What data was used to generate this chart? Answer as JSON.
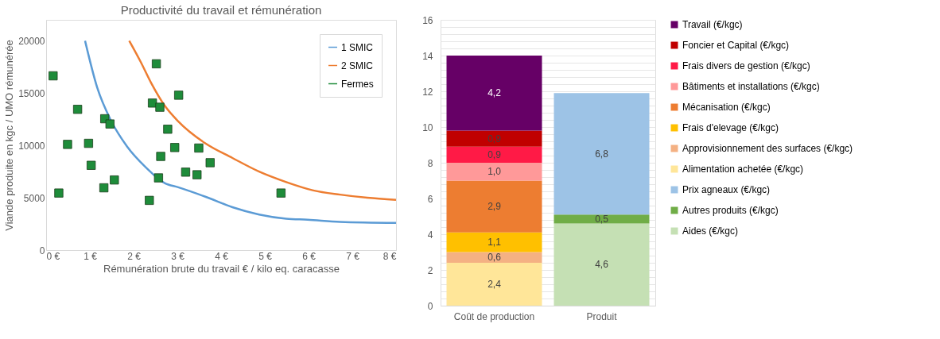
{
  "chart_data": [
    {
      "type": "line",
      "title": "Productivité du travail et rémunération",
      "xlabel": "Rémunération brute du travail € / kilo eq. caracasse",
      "ylabel": "Viande produite en kgc / UMO rémunérée",
      "xlim": [
        0,
        8
      ],
      "xticks": [
        {
          "value": 0,
          "label": "0 €"
        },
        {
          "value": 1,
          "label": "1 €"
        },
        {
          "value": 2,
          "label": "2 €"
        },
        {
          "value": 3,
          "label": "3 €"
        },
        {
          "value": 4,
          "label": "4 €"
        },
        {
          "value": 5,
          "label": "5 €"
        },
        {
          "value": 6,
          "label": "6 €"
        },
        {
          "value": 7,
          "label": "7 €"
        },
        {
          "value": 8,
          "label": "8 €"
        }
      ],
      "ylim": [
        0,
        22000
      ],
      "yticks": [
        0,
        5000,
        10000,
        15000,
        20000
      ],
      "grid": false,
      "legend": "top right",
      "series": [
        {
          "name": "1 SMIC",
          "type": "line",
          "color": "#5b9bd5",
          "x": [
            0.89,
            1.17,
            1.48,
            1.85,
            2.28,
            2.71,
            3.02,
            3.64,
            4.26,
            4.87,
            5.49,
            5.98,
            6.72,
            8
          ],
          "values": [
            20000,
            15500,
            12400,
            9900,
            7900,
            6400,
            6000,
            5100,
            4100,
            3400,
            3000,
            2900,
            2700,
            2600
          ]
        },
        {
          "name": "2 SMIC",
          "type": "line",
          "color": "#ed7d31",
          "x": [
            1.9,
            2.16,
            2.41,
            2.71,
            3.02,
            3.64,
            4.26,
            4.87,
            5.49,
            6.11,
            6.72,
            7.34,
            8
          ],
          "values": [
            20000,
            18000,
            15900,
            13800,
            12300,
            10200,
            8800,
            7500,
            6500,
            5700,
            5300,
            5000,
            4800
          ]
        },
        {
          "name": "Fermes",
          "type": "scatter",
          "marker": "square",
          "color": "#1e8c3a",
          "x": [
            0.16,
            0.29,
            0.49,
            0.72,
            0.97,
            1.03,
            1.32,
            1.34,
            1.46,
            1.56,
            2.36,
            2.43,
            2.52,
            2.6,
            2.57,
            2.62,
            2.78,
            2.94,
            3.03,
            3.19,
            3.45,
            3.49,
            3.75,
            5.37
          ],
          "values": [
            16650,
            5450,
            10100,
            13450,
            10200,
            8100,
            5950,
            12550,
            12050,
            6700,
            4750,
            14050,
            17800,
            13650,
            6900,
            8950,
            11550,
            9800,
            14800,
            7450,
            7200,
            9750,
            8350,
            5450
          ]
        }
      ]
    },
    {
      "type": "bar",
      "stacked": true,
      "categories": [
        "Coût de production",
        "Produit"
      ],
      "ylim": [
        0,
        16
      ],
      "grid": "y",
      "legend": "right",
      "yticks": [
        0,
        {
          "value": 0.4,
          "label": null
        },
        {
          "value": 0.8,
          "label": null
        },
        {
          "value": 1.2,
          "label": null
        },
        {
          "value": 1.6,
          "label": null
        },
        2,
        {
          "value": 2.4,
          "label": null
        },
        {
          "value": 2.8,
          "label": null
        },
        {
          "value": 3.2,
          "label": null
        },
        {
          "value": 3.6,
          "label": null
        },
        4,
        {
          "value": 4.4,
          "label": null
        },
        {
          "value": 4.8,
          "label": null
        },
        {
          "value": 5.2,
          "label": null
        },
        {
          "value": 5.6,
          "label": null
        },
        6,
        {
          "value": 6.4,
          "label": null
        },
        {
          "value": 6.8,
          "label": null
        },
        {
          "value": 7.2,
          "label": null
        },
        {
          "value": 7.6,
          "label": null
        },
        8,
        {
          "value": 8.4,
          "label": null
        },
        {
          "value": 8.8,
          "label": null
        },
        {
          "value": 9.2,
          "label": null
        },
        {
          "value": 9.6,
          "label": null
        },
        10,
        {
          "value": 10.4,
          "label": null
        },
        {
          "value": 10.8,
          "label": null
        },
        {
          "value": 11.2,
          "label": null
        },
        {
          "value": 11.6,
          "label": null
        },
        12,
        {
          "value": 12.4,
          "label": null
        },
        {
          "value": 12.8,
          "label": null
        },
        {
          "value": 13.2,
          "label": null
        },
        {
          "value": 13.6,
          "label": null
        },
        14,
        {
          "value": 14.4,
          "label": null
        },
        {
          "value": 14.8,
          "label": null
        },
        {
          "value": 15.2,
          "label": null
        },
        {
          "value": 15.6,
          "label": null
        },
        16
      ],
      "series": [
        {
          "name": "Alimentation achetée (€/kgc)",
          "color": "#ffe699",
          "values": [
            2.4,
            null
          ],
          "value_labels": [
            "2,4",
            null
          ]
        },
        {
          "name": "Approvisionnement des surfaces (€/kgc)",
          "color": "#f4b183",
          "values": [
            0.6,
            null
          ],
          "value_labels": [
            "0,6",
            null
          ]
        },
        {
          "name": "Frais d'elevage (€/kgc)",
          "color": "#ffc000",
          "values": [
            1.1,
            null
          ],
          "value_labels": [
            "1,1",
            null
          ]
        },
        {
          "name": "Mécanisation (€/kgc)",
          "color": "#ed7d31",
          "values": [
            2.9,
            null
          ],
          "value_labels": [
            "2,9",
            null
          ]
        },
        {
          "name": "Bâtiments et installations (€/kgc)",
          "color": "#ff9999",
          "values": [
            1.0,
            null
          ],
          "value_labels": [
            "1,0",
            null
          ]
        },
        {
          "name": "Frais divers de gestion (€/kgc)",
          "color": "#ff1a46",
          "values": [
            0.9,
            null
          ],
          "value_labels": [
            "0,9",
            null
          ]
        },
        {
          "name": "Foncier et Capital (€/kgc)",
          "color": "#c00000",
          "values": [
            0.9,
            null
          ],
          "value_labels": [
            "0,9",
            null
          ]
        },
        {
          "name": "Travail (€/kgc)",
          "color": "#660066",
          "values": [
            4.2,
            null
          ],
          "value_labels": [
            "4,2",
            null
          ]
        },
        {
          "name": "Aides (€/kgc)",
          "color": "#c5e0b4",
          "values": [
            null,
            4.6
          ],
          "value_labels": [
            null,
            "4,6"
          ]
        },
        {
          "name": "Autres produits (€/kgc)",
          "color": "#70ad47",
          "values": [
            null,
            0.5
          ],
          "value_labels": [
            null,
            "0,5"
          ]
        },
        {
          "name": "Prix agneaux (€/kgc)",
          "color": "#9dc3e6",
          "values": [
            null,
            6.8
          ],
          "value_labels": [
            null,
            "6,8"
          ]
        }
      ]
    }
  ]
}
